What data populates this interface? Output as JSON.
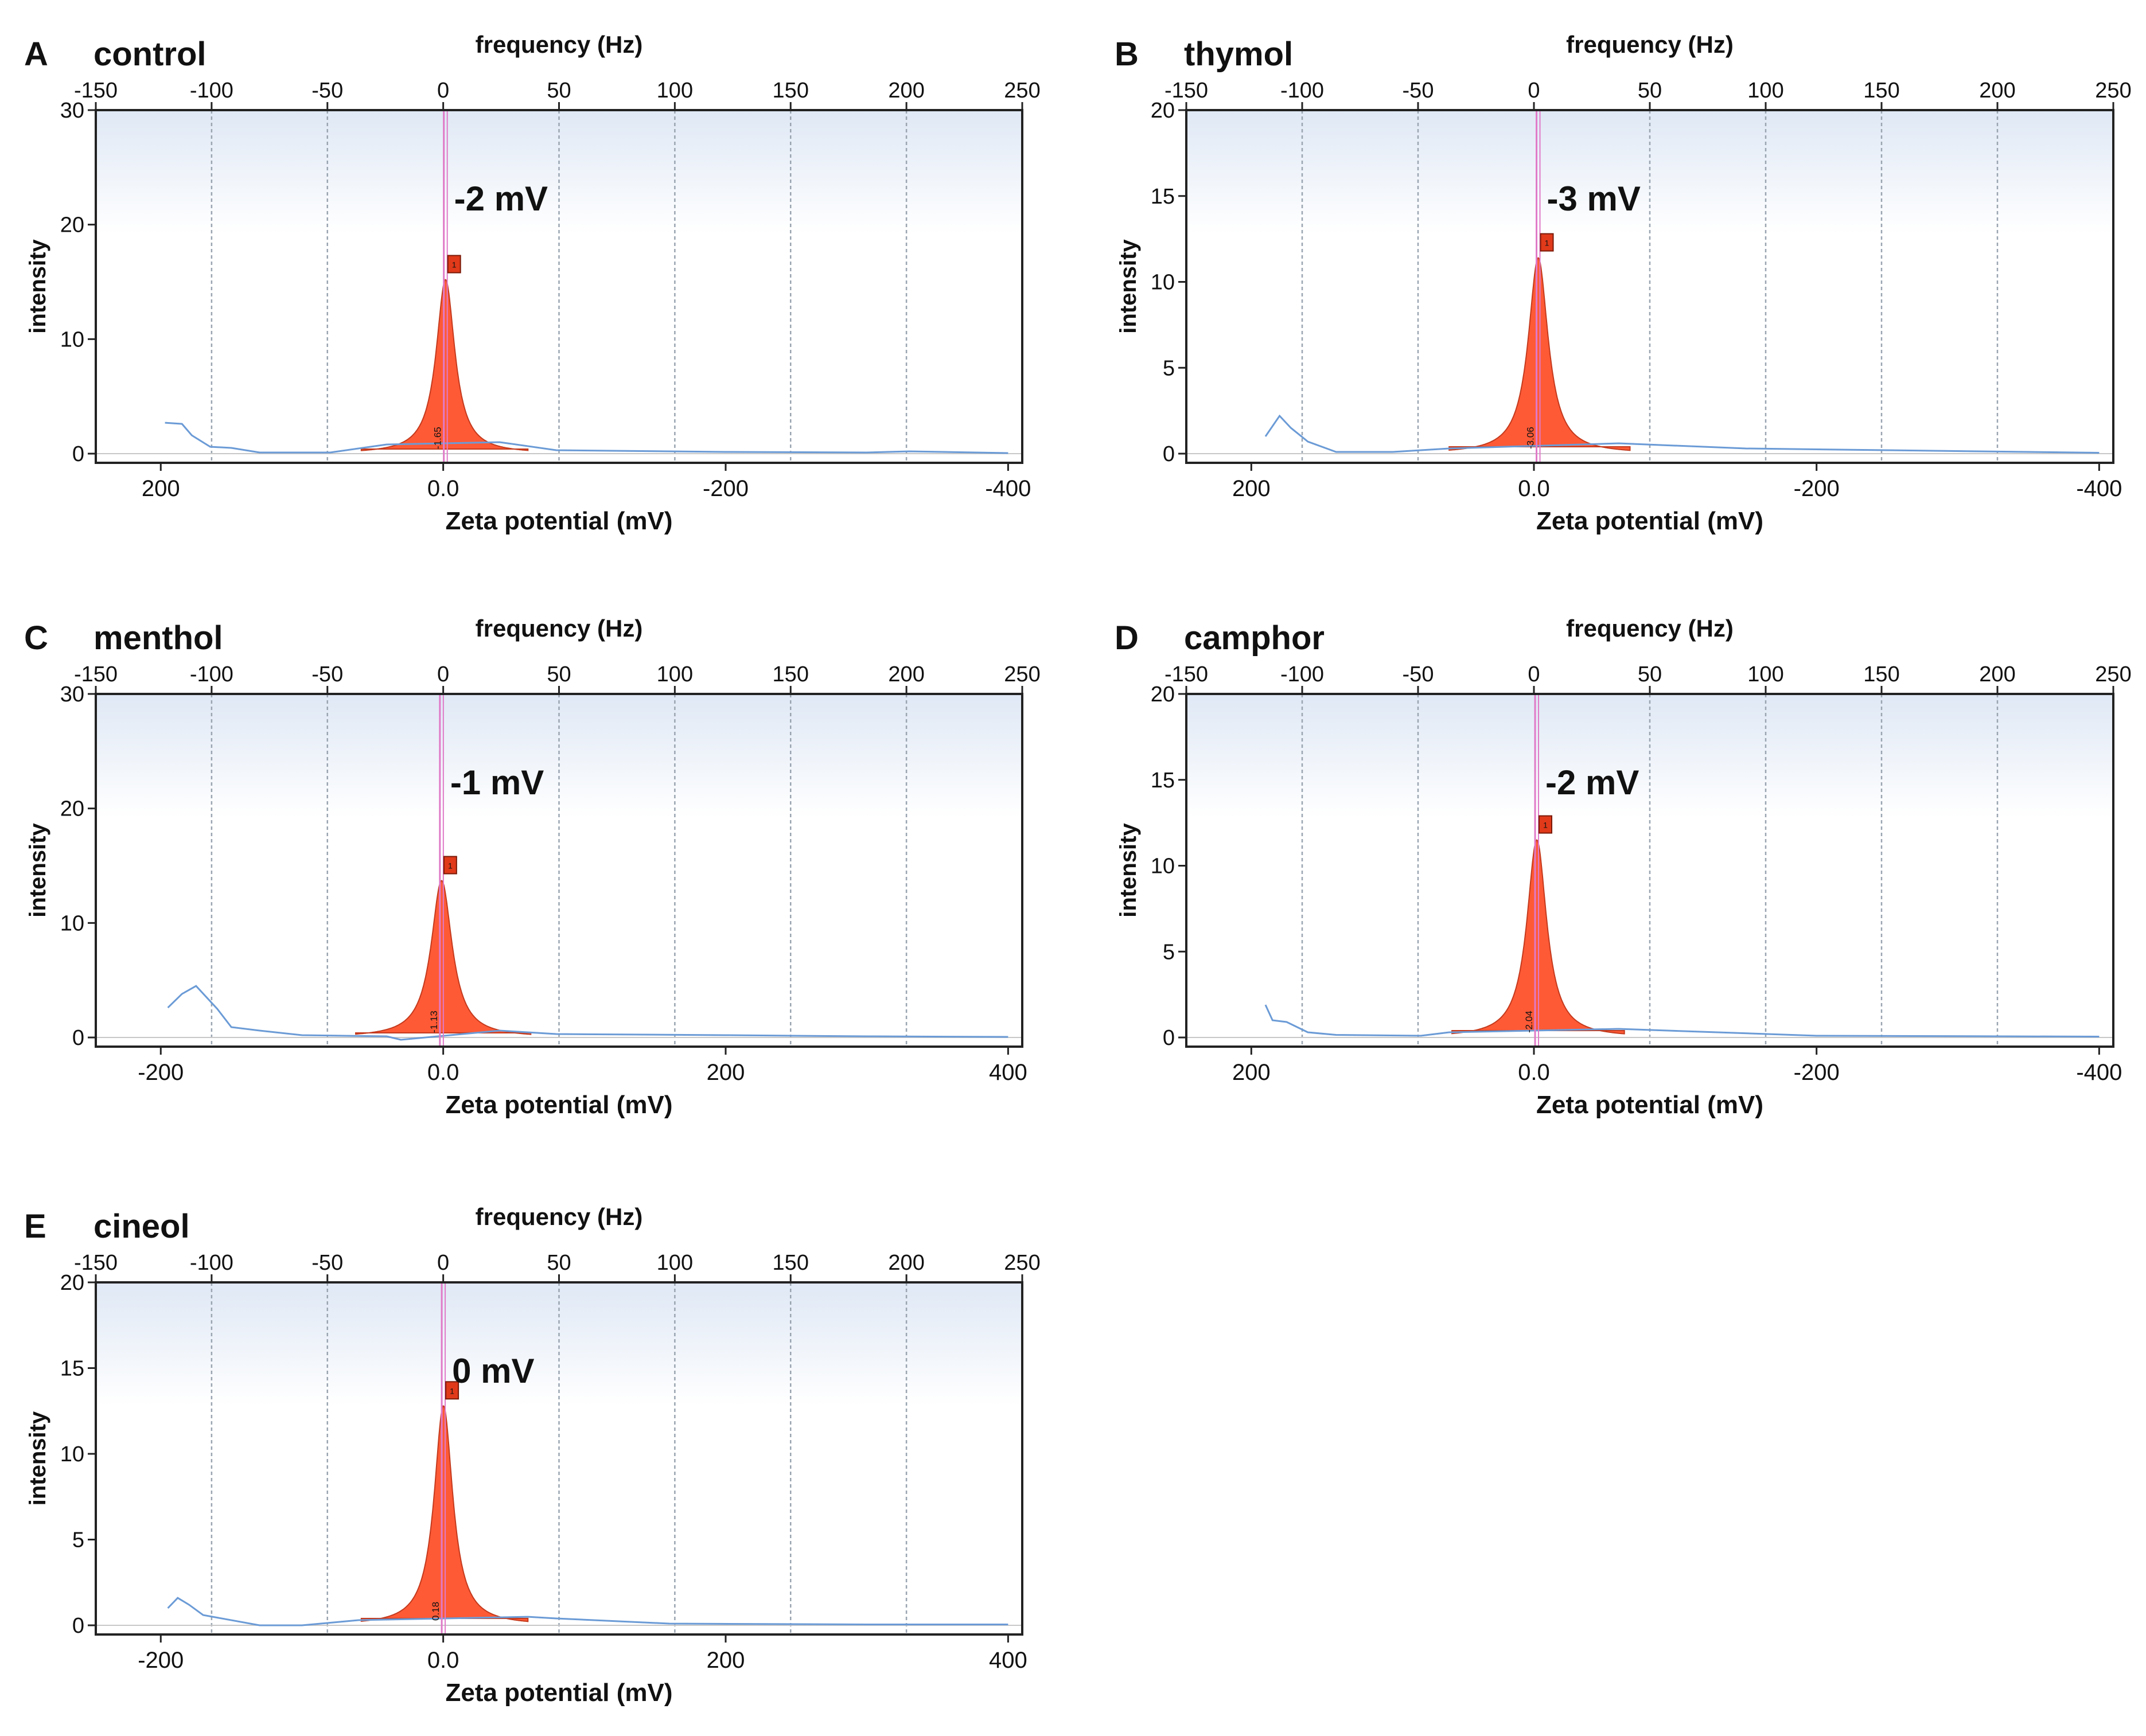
{
  "colors": {
    "peak_fill": "#ff5a36",
    "peak_edge": "#c43a1d",
    "curve": "#6b9bd6",
    "peak_line": "#e07ac8",
    "grid": "#9aa5b1",
    "axis": "#222222",
    "plot_bg_top": "#dfe8f5",
    "plot_bg_bottom": "#ffffff"
  },
  "chart_data": [
    {
      "type": "area",
      "panel_label": "A",
      "title": "control",
      "top_axis_label": "frequency (Hz)",
      "top_ticks": [
        "-150",
        "-100",
        "-50",
        "0",
        "50",
        "100",
        "150",
        "200",
        "250"
      ],
      "top_range": [
        -150,
        250
      ],
      "ylabel": "intensity",
      "y_ticks": [
        "0",
        "10",
        "20",
        "30"
      ],
      "ylim": [
        0,
        30
      ],
      "xlabel": "Zeta potential (mV)",
      "bottom_ticks": [
        "200",
        "0.0",
        "-200",
        "-400"
      ],
      "bottom_tick_values": [
        200,
        0,
        -200,
        -400
      ],
      "zeta_range": [
        246,
        -410
      ],
      "peak_zeta_mV": -1.65,
      "peak_label": "-2 mV",
      "peak_marker": "1",
      "peak_value_text": "-1.65",
      "peak_height": 15.2,
      "peak_width_mV": 16,
      "peak_span_mV": [
        58,
        -60
      ],
      "baseline": [
        [
          197,
          2.7
        ],
        [
          185,
          2.6
        ],
        [
          178,
          1.6
        ],
        [
          165,
          0.6
        ],
        [
          150,
          0.5
        ],
        [
          130,
          0.1
        ],
        [
          80,
          0.1
        ],
        [
          40,
          0.8
        ],
        [
          -40,
          1.0
        ],
        [
          -80,
          0.3
        ],
        [
          -200,
          0.15
        ],
        [
          -300,
          0.1
        ],
        [
          -330,
          0.2
        ],
        [
          -400,
          0.05
        ]
      ]
    },
    {
      "type": "area",
      "panel_label": "B",
      "title": "thymol",
      "top_axis_label": "frequency (Hz)",
      "top_ticks": [
        "-150",
        "-100",
        "-50",
        "0",
        "50",
        "100",
        "150",
        "200",
        "250"
      ],
      "top_range": [
        -150,
        250
      ],
      "ylabel": "intensity",
      "y_ticks": [
        "0",
        "5",
        "10",
        "15",
        "20"
      ],
      "ylim": [
        0,
        20
      ],
      "xlabel": "Zeta potential (mV)",
      "bottom_ticks": [
        "200",
        "0.0",
        "-200",
        "-400"
      ],
      "bottom_tick_values": [
        200,
        0,
        -200,
        -400
      ],
      "zeta_range": [
        246,
        -410
      ],
      "peak_zeta_mV": -3.06,
      "peak_label": "-3 mV",
      "peak_marker": "1",
      "peak_value_text": "-3.06",
      "peak_height": 11.4,
      "peak_width_mV": 17,
      "peak_span_mV": [
        60,
        -68
      ],
      "baseline": [
        [
          190,
          1.0
        ],
        [
          180,
          2.2
        ],
        [
          172,
          1.5
        ],
        [
          160,
          0.7
        ],
        [
          140,
          0.1
        ],
        [
          100,
          0.1
        ],
        [
          60,
          0.3
        ],
        [
          -60,
          0.6
        ],
        [
          -150,
          0.3
        ],
        [
          -250,
          0.2
        ],
        [
          -400,
          0.05
        ]
      ]
    },
    {
      "type": "area",
      "panel_label": "C",
      "title": "menthol",
      "top_axis_label": "frequency (Hz)",
      "top_ticks": [
        "-150",
        "-100",
        "-50",
        "0",
        "50",
        "100",
        "150",
        "200",
        "250"
      ],
      "top_range": [
        -150,
        250
      ],
      "ylabel": "intensity",
      "y_ticks": [
        "0",
        "10",
        "20",
        "30"
      ],
      "ylim": [
        0,
        30
      ],
      "xlabel": "Zeta potential (mV)",
      "bottom_ticks": [
        "-200",
        "0.0",
        "200",
        "400"
      ],
      "bottom_tick_values": [
        -200,
        0,
        200,
        400
      ],
      "zeta_range": [
        -246,
        410
      ],
      "peak_zeta_mV": -1.13,
      "peak_label": "-1 mV",
      "peak_marker": "1",
      "peak_value_text": "-1.13",
      "peak_height": 13.7,
      "peak_width_mV": 18,
      "peak_span_mV": [
        -62,
        62
      ],
      "baseline": [
        [
          -195,
          2.6
        ],
        [
          -185,
          3.8
        ],
        [
          -175,
          4.5
        ],
        [
          -160,
          2.5
        ],
        [
          -150,
          0.9
        ],
        [
          -130,
          0.6
        ],
        [
          -100,
          0.2
        ],
        [
          -40,
          0.1
        ],
        [
          -30,
          -0.2
        ],
        [
          40,
          0.6
        ],
        [
          80,
          0.3
        ],
        [
          200,
          0.2
        ],
        [
          300,
          0.1
        ],
        [
          400,
          0.05
        ]
      ]
    },
    {
      "type": "area",
      "panel_label": "D",
      "title": "camphor",
      "top_axis_label": "frequency (Hz)",
      "top_ticks": [
        "-150",
        "-100",
        "-50",
        "0",
        "50",
        "100",
        "150",
        "200",
        "250"
      ],
      "top_range": [
        -150,
        250
      ],
      "ylabel": "intensity",
      "y_ticks": [
        "0",
        "5",
        "10",
        "15",
        "20"
      ],
      "ylim": [
        0,
        20
      ],
      "xlabel": "Zeta potential (mV)",
      "bottom_ticks": [
        "200",
        "0.0",
        "-200",
        "-400"
      ],
      "bottom_tick_values": [
        200,
        0,
        -200,
        -400
      ],
      "zeta_range": [
        246,
        -410
      ],
      "peak_zeta_mV": -2.04,
      "peak_label": "-2 mV",
      "peak_marker": "1",
      "peak_value_text": "-2.04",
      "peak_height": 11.5,
      "peak_width_mV": 17,
      "peak_span_mV": [
        58,
        -64
      ],
      "baseline": [
        [
          190,
          1.9
        ],
        [
          185,
          1.0
        ],
        [
          175,
          0.9
        ],
        [
          160,
          0.3
        ],
        [
          140,
          0.15
        ],
        [
          80,
          0.1
        ],
        [
          60,
          0.3
        ],
        [
          -60,
          0.5
        ],
        [
          -200,
          0.1
        ],
        [
          -400,
          0.05
        ]
      ]
    },
    {
      "type": "area",
      "panel_label": "E",
      "title": "cineol",
      "top_axis_label": "frequency (Hz)",
      "top_ticks": [
        "-150",
        "-100",
        "-50",
        "0",
        "50",
        "100",
        "150",
        "200",
        "250"
      ],
      "top_range": [
        -150,
        250
      ],
      "ylabel": "intensity",
      "y_ticks": [
        "0",
        "5",
        "10",
        "15",
        "20"
      ],
      "ylim": [
        0,
        20
      ],
      "xlabel": "Zeta potential (mV)",
      "bottom_ticks": [
        "-200",
        "0.0",
        "200",
        "400"
      ],
      "bottom_tick_values": [
        -200,
        0,
        200,
        400
      ],
      "zeta_range": [
        -246,
        410
      ],
      "peak_zeta_mV": 0.18,
      "peak_label": "0 mV",
      "peak_marker": "1",
      "peak_value_text": "0.18",
      "peak_height": 12.8,
      "peak_width_mV": 16,
      "peak_span_mV": [
        -58,
        60
      ],
      "baseline": [
        [
          -195,
          1.0
        ],
        [
          -188,
          1.6
        ],
        [
          -180,
          1.2
        ],
        [
          -170,
          0.6
        ],
        [
          -130,
          0.0
        ],
        [
          -100,
          0.0
        ],
        [
          -60,
          0.3
        ],
        [
          60,
          0.5
        ],
        [
          80,
          0.4
        ],
        [
          160,
          0.1
        ],
        [
          300,
          0.05
        ],
        [
          400,
          0.05
        ]
      ]
    }
  ]
}
